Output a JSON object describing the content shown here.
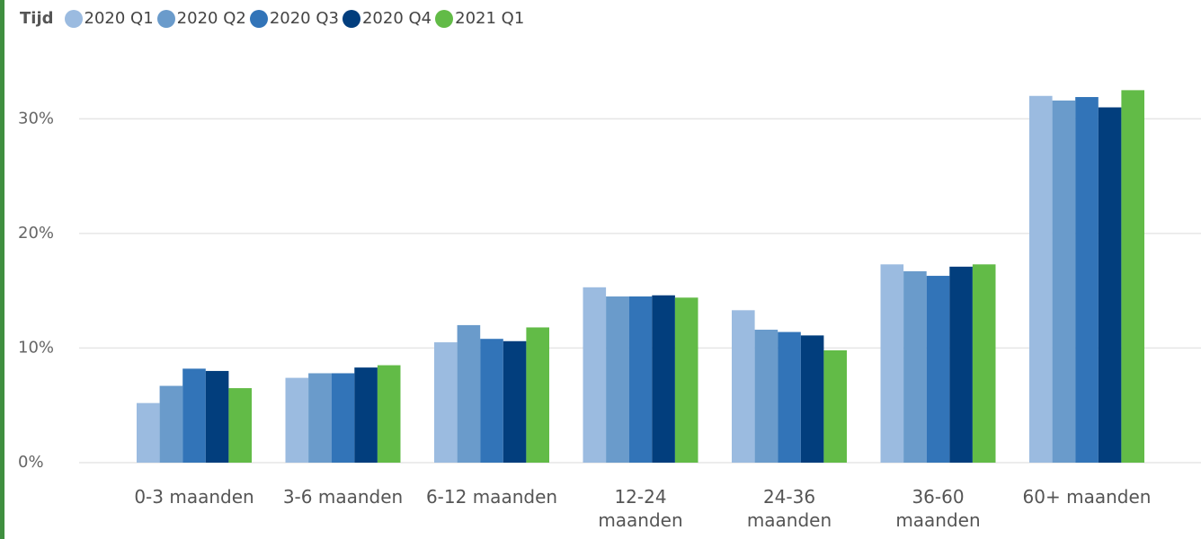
{
  "chart_data": {
    "type": "bar",
    "legend_title": "Tijd",
    "categories": [
      "0-3 maanden",
      "3-6 maanden",
      "6-12 maanden",
      "12-24 maanden",
      "24-36 maanden",
      "36-60 maanden",
      "60+ maanden"
    ],
    "series": [
      {
        "name": "2020 Q1",
        "color": "#9bbbe0",
        "values": [
          5.2,
          7.4,
          10.5,
          15.3,
          13.3,
          17.3,
          32.0
        ]
      },
      {
        "name": "2020 Q2",
        "color": "#6a9bcb",
        "values": [
          6.7,
          7.8,
          12.0,
          14.5,
          11.6,
          16.7,
          31.6
        ]
      },
      {
        "name": "2020 Q3",
        "color": "#3274b8",
        "values": [
          8.2,
          7.8,
          10.8,
          14.5,
          11.4,
          16.3,
          31.9
        ]
      },
      {
        "name": "2020 Q4",
        "color": "#023e7d",
        "values": [
          8.0,
          8.3,
          10.6,
          14.6,
          11.1,
          17.1,
          31.0
        ]
      },
      {
        "name": "2021 Q1",
        "color": "#62bb47",
        "values": [
          6.5,
          8.5,
          11.8,
          14.4,
          9.8,
          17.3,
          32.5
        ]
      }
    ],
    "ylim": [
      0,
      33
    ],
    "yticks": [
      {
        "value": 0,
        "label": "0%"
      },
      {
        "value": 10,
        "label": "10%"
      },
      {
        "value": 20,
        "label": "20%"
      },
      {
        "value": 30,
        "label": "30%"
      }
    ],
    "grid": true
  }
}
